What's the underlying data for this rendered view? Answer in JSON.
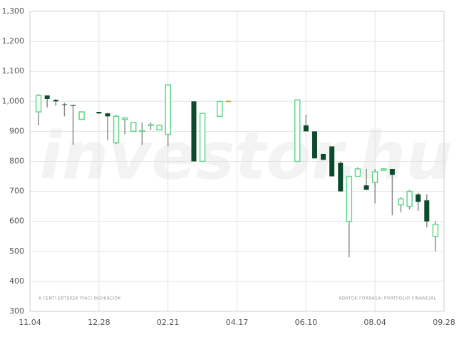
{
  "chart_data": {
    "type": "candlestick",
    "watermark": "investor.hu",
    "note_left": "A FENTI ÉRTÉKEK PIACI INDIKÁCIÓK",
    "note_right": "ADATOK FORRÁSA: PORTFOLIO FINANCIAL",
    "categories": [
      "11.04",
      null,
      null,
      null,
      null,
      null,
      null,
      null,
      "12.28",
      null,
      null,
      null,
      null,
      null,
      null,
      null,
      "02.21",
      null,
      null,
      null,
      null,
      null,
      null,
      null,
      "04.17",
      null,
      null,
      null,
      null,
      null,
      null,
      null,
      "06.10",
      null,
      null,
      null,
      null,
      null,
      null,
      null,
      "08.04",
      null,
      null,
      null,
      null,
      null,
      null,
      null,
      "09.28"
    ],
    "open": [
      null,
      965,
      1020,
      1005,
      990,
      988,
      940,
      null,
      965,
      960,
      862,
      940,
      900,
      900,
      920,
      905,
      890,
      null,
      null,
      1000,
      800,
      null,
      950,
      1000,
      null,
      null,
      null,
      null,
      null,
      null,
      null,
      800,
      920,
      900,
      825,
      850,
      795,
      600,
      750,
      720,
      730,
      770,
      775,
      655,
      650,
      690,
      670,
      550,
      null
    ],
    "high": [
      null,
      1025,
      1020,
      1008,
      995,
      988,
      965,
      null,
      965,
      962,
      955,
      945,
      930,
      930,
      930,
      922,
      1055,
      null,
      null,
      1000,
      960,
      null,
      1000,
      1000,
      null,
      null,
      null,
      null,
      null,
      null,
      null,
      1005,
      955,
      900,
      825,
      850,
      800,
      750,
      780,
      775,
      775,
      778,
      775,
      680,
      705,
      695,
      690,
      600,
      null
    ],
    "low": [
      null,
      920,
      980,
      985,
      950,
      855,
      940,
      null,
      958,
      870,
      858,
      890,
      900,
      855,
      905,
      905,
      850,
      null,
      null,
      800,
      800,
      null,
      950,
      1000,
      null,
      null,
      null,
      null,
      null,
      null,
      null,
      800,
      900,
      810,
      805,
      750,
      700,
      480,
      750,
      705,
      660,
      770,
      620,
      630,
      640,
      635,
      580,
      500,
      null
    ],
    "close": [
      null,
      1020,
      1008,
      1000,
      988,
      985,
      965,
      null,
      960,
      950,
      950,
      945,
      930,
      902,
      922,
      920,
      1055,
      null,
      null,
      800,
      960,
      null,
      1000,
      1000,
      null,
      null,
      null,
      null,
      null,
      null,
      null,
      1005,
      900,
      810,
      805,
      750,
      700,
      750,
      775,
      705,
      765,
      775,
      755,
      675,
      700,
      665,
      600,
      590,
      null
    ],
    "up_color": "#5fd88a",
    "down_color": "#0b4a2a",
    "flat_color": "#b8a84a",
    "wick_color": "#8c8c8c",
    "ylim": [
      300,
      1300
    ],
    "yticks": [
      300,
      400,
      500,
      600,
      700,
      800,
      900,
      {
        "value": 1000,
        "label": "1,000"
      },
      {
        "value": 1100,
        "label": "1,100"
      },
      {
        "value": 1200,
        "label": "1,200"
      },
      {
        "value": 1300,
        "label": "1,300"
      }
    ],
    "grid": true
  }
}
